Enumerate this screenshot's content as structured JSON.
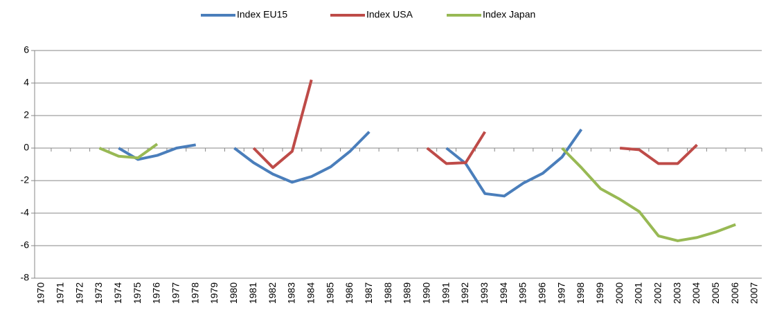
{
  "chart_data": {
    "type": "line",
    "categories": [
      "1970",
      "1971",
      "1972",
      "1973",
      "1974",
      "1975",
      "1976",
      "1977",
      "1978",
      "1979",
      "1980",
      "1981",
      "1982",
      "1983",
      "1984",
      "1985",
      "1986",
      "1987",
      "1988",
      "1989",
      "1990",
      "1991",
      "1992",
      "1993",
      "1994",
      "1995",
      "1996",
      "1997",
      "1998",
      "1999",
      "2000",
      "2001",
      "2002",
      "2003",
      "2004",
      "2005",
      "2006",
      "2007"
    ],
    "series": [
      {
        "name": "Index EU15",
        "color": "#4a7ebb",
        "values": [
          null,
          null,
          null,
          null,
          0,
          -0.7,
          -0.45,
          0,
          0.2,
          null,
          0,
          -0.9,
          -1.6,
          -2.1,
          -1.75,
          -1.15,
          -0.2,
          1.0,
          null,
          null,
          null,
          0,
          -0.95,
          -2.8,
          -2.95,
          -2.15,
          -1.55,
          -0.55,
          1.15,
          null,
          null,
          null,
          null,
          null,
          null,
          null,
          null,
          null
        ]
      },
      {
        "name": "Index USA",
        "color": "#be4b48",
        "values": [
          null,
          null,
          null,
          null,
          null,
          null,
          null,
          null,
          null,
          null,
          null,
          0,
          -1.2,
          -0.2,
          4.2,
          null,
          null,
          null,
          null,
          null,
          0,
          -0.95,
          -0.9,
          1.0,
          null,
          null,
          null,
          null,
          null,
          null,
          0,
          -0.1,
          -0.95,
          -0.95,
          0.2,
          null,
          null,
          null
        ]
      },
      {
        "name": "Index Japan",
        "color": "#98b954",
        "values": [
          null,
          null,
          null,
          0,
          -0.5,
          -0.6,
          0.25,
          null,
          null,
          null,
          null,
          null,
          null,
          null,
          null,
          null,
          null,
          null,
          null,
          null,
          null,
          null,
          null,
          null,
          null,
          null,
          null,
          0,
          -1.2,
          -2.5,
          -3.15,
          -3.9,
          -5.4,
          -5.7,
          -5.5,
          -5.15,
          -4.7,
          null
        ]
      }
    ],
    "ylim": [
      -8,
      6
    ],
    "yticks": [
      -8,
      -6,
      -4,
      -2,
      0,
      2,
      4,
      6
    ],
    "grid": true,
    "legend": "top"
  }
}
